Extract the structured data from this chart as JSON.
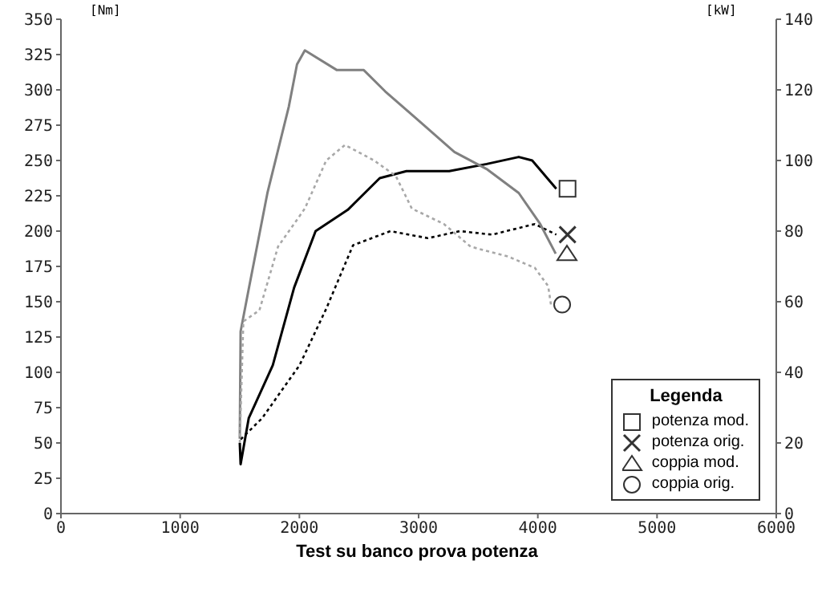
{
  "chart_data": {
    "type": "line",
    "title": "Test su banco prova potenza",
    "ylabel": "[Nm]",
    "y2label": "[kW]",
    "legend_title": "Legenda",
    "legend": "bottom right",
    "xlim": [
      0,
      6000
    ],
    "xticks": [
      0,
      1000,
      2000,
      3000,
      4000,
      5000,
      6000
    ],
    "ylim": [
      0,
      350
    ],
    "yticks": [
      0,
      25,
      50,
      75,
      100,
      125,
      150,
      175,
      200,
      225,
      250,
      275,
      300,
      325,
      350
    ],
    "y2lim": [
      0,
      140
    ],
    "y2ticks": [
      0,
      20,
      40,
      60,
      80,
      100,
      120,
      140
    ],
    "series": [
      {
        "name": "potenza mod.",
        "color": "#000000",
        "axis": "y2",
        "line_style": "solid",
        "x": [
          1500,
          1507,
          1575,
          1777,
          1956,
          2136,
          2405,
          2674,
          2898,
          3257,
          3571,
          3840,
          3953,
          4155
        ],
        "values": [
          20,
          14,
          27,
          42,
          64,
          80,
          86,
          95,
          97,
          97,
          99,
          101,
          100,
          92
        ]
      },
      {
        "name": "potenza orig.",
        "color": "#000000",
        "axis": "y2",
        "line_style": "dotted",
        "x": [
          1507,
          1687,
          2001,
          2225,
          2450,
          2763,
          3078,
          3347,
          3616,
          3975,
          4155
        ],
        "values": [
          21,
          27,
          42,
          58,
          76,
          80,
          78,
          80,
          79,
          82,
          79
        ]
      },
      {
        "name": "coppia mod.",
        "color": "#808080",
        "line_style": "solid",
        "x": [
          1500,
          1507,
          1575,
          1732,
          1911,
          1980,
          2046,
          2315,
          2540,
          2719,
          3030,
          3300,
          3570,
          3840,
          4020,
          4150
        ],
        "values": [
          53,
          129,
          159,
          227,
          288,
          318,
          328,
          314,
          314,
          299,
          276,
          256,
          244,
          227,
          205,
          184
        ]
      },
      {
        "name": "coppia orig.",
        "color": "#a8a8a8",
        "line_style": "dotted",
        "x": [
          1500,
          1530,
          1665,
          1821,
          2046,
          2225,
          2382,
          2627,
          2809,
          2943,
          3213,
          3436,
          3751,
          3975,
          4087,
          4110
        ],
        "values": [
          50,
          136,
          144,
          189,
          216,
          250,
          261,
          250,
          239,
          216,
          205,
          189,
          182,
          174,
          161,
          148
        ]
      }
    ]
  }
}
